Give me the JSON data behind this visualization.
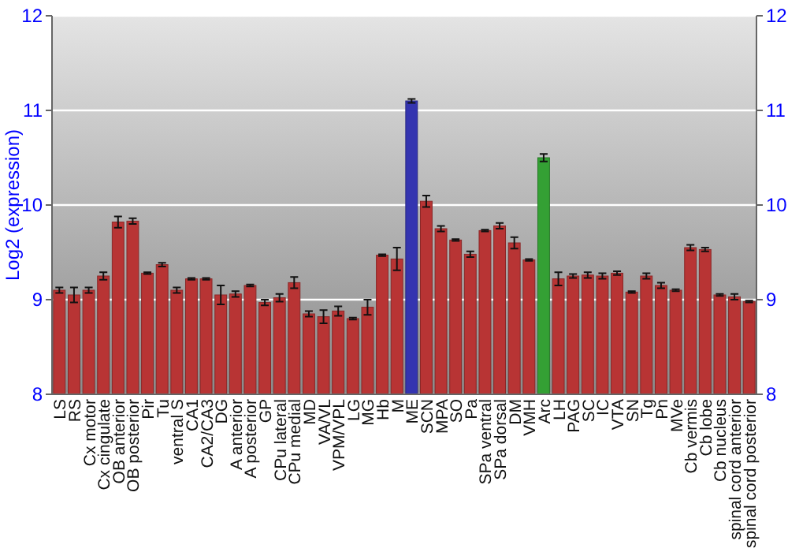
{
  "chart_data": {
    "type": "bar",
    "ylabel": "Log2 (expression)",
    "categories": [
      "LS",
      "RS",
      "Cx motor",
      "Cx cingulate",
      "OB anterior",
      "OB posterior",
      "Pir",
      "Tu",
      "ventral S",
      "CA1",
      "CA2/CA3",
      "DG",
      "A anterior",
      "A posterior",
      "GP",
      "CPu lateral",
      "CPu medial",
      "MD",
      "VA/VL",
      "VPM/VPL",
      "LG",
      "MG",
      "Hb",
      "M",
      "ME",
      "SCN",
      "MPA",
      "SO",
      "Pa",
      "SPa ventral",
      "SPa dorsal",
      "DM",
      "VMH",
      "Arc",
      "LH",
      "PAG",
      "SC",
      "IC",
      "VTA",
      "SN",
      "Tg",
      "Pn",
      "MVe",
      "Cb vermis",
      "Cb lobe",
      "Cb nucleus",
      "spinal cord anterior",
      "spinal cord posterior"
    ],
    "values": [
      9.1,
      9.05,
      9.1,
      9.25,
      9.82,
      9.83,
      9.28,
      9.37,
      9.1,
      9.22,
      9.22,
      9.05,
      9.06,
      9.15,
      8.97,
      9.02,
      9.18,
      8.85,
      8.82,
      8.88,
      8.8,
      8.92,
      9.47,
      9.43,
      11.1,
      10.04,
      9.75,
      9.63,
      9.48,
      9.73,
      9.78,
      9.6,
      9.42,
      10.5,
      9.22,
      9.25,
      9.26,
      9.25,
      9.28,
      9.08,
      9.25,
      9.15,
      9.1,
      9.55,
      9.53,
      9.05,
      9.03,
      8.98
    ],
    "errors": [
      0.03,
      0.08,
      0.03,
      0.04,
      0.06,
      0.03,
      0.01,
      0.02,
      0.03,
      0.01,
      0.01,
      0.1,
      0.03,
      0.01,
      0.03,
      0.04,
      0.06,
      0.03,
      0.07,
      0.05,
      0.01,
      0.08,
      0.01,
      0.12,
      0.02,
      0.06,
      0.03,
      0.01,
      0.03,
      0.01,
      0.03,
      0.06,
      0.01,
      0.04,
      0.07,
      0.02,
      0.03,
      0.03,
      0.02,
      0.01,
      0.03,
      0.03,
      0.01,
      0.03,
      0.02,
      0.01,
      0.03,
      0.01
    ],
    "colors": [
      "#b83434",
      "#b83434",
      "#b83434",
      "#b83434",
      "#b83434",
      "#b83434",
      "#b83434",
      "#b83434",
      "#b83434",
      "#b83434",
      "#b83434",
      "#b83434",
      "#b83434",
      "#b83434",
      "#b83434",
      "#b83434",
      "#b83434",
      "#b83434",
      "#b83434",
      "#b83434",
      "#b83434",
      "#b83434",
      "#b83434",
      "#b83434",
      "#3434b0",
      "#b83434",
      "#b83434",
      "#b83434",
      "#b83434",
      "#b83434",
      "#b83434",
      "#b83434",
      "#b83434",
      "#34a034",
      "#b83434",
      "#b83434",
      "#b83434",
      "#b83434",
      "#b83434",
      "#b83434",
      "#b83434",
      "#b83434",
      "#b83434",
      "#b83434",
      "#b83434",
      "#b83434",
      "#b83434",
      "#b83434"
    ],
    "ylim": [
      8,
      12
    ],
    "yticks": [
      8,
      9,
      10,
      11,
      12
    ],
    "y2lim": [
      8,
      12
    ],
    "y2ticks": [
      8,
      9,
      10,
      11,
      12
    ],
    "grid": "y"
  }
}
